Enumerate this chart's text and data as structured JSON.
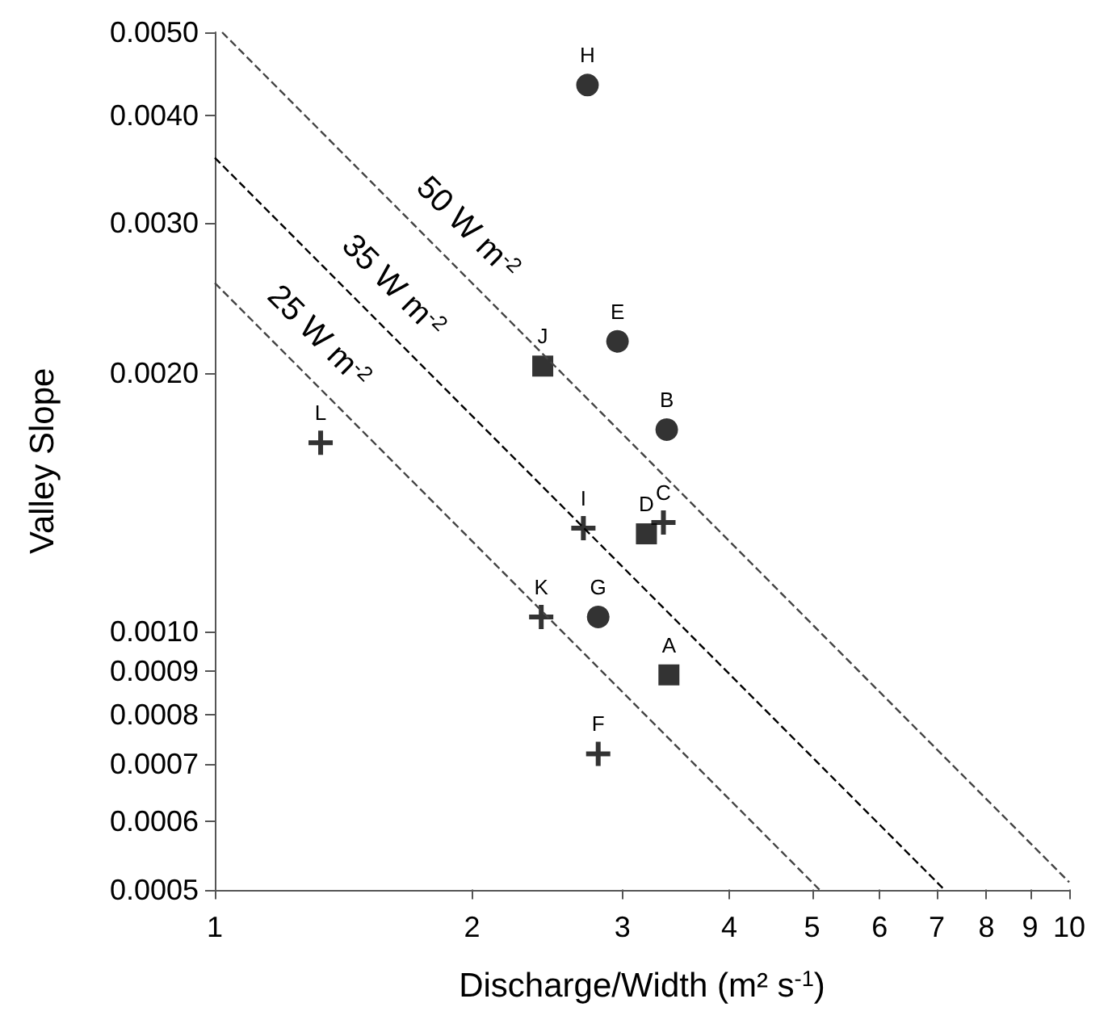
{
  "chart_data": {
    "type": "scatter",
    "xlabel": "Discharge/Width (m² s$^{-1}$)",
    "ylabel": "Valley Slope",
    "log": "xy",
    "grid": false,
    "legend": false,
    "xlim": [
      1,
      10
    ],
    "xticks": [
      1,
      2,
      3,
      4,
      5,
      6,
      7,
      8,
      9,
      10
    ],
    "ylim": [
      0.0005,
      0.005
    ],
    "yticks": [
      {
        "value": 0.0005,
        "label": "0.0005"
      },
      {
        "value": 0.0006,
        "label": "0.0006"
      },
      {
        "value": 0.0007,
        "label": "0.0007"
      },
      {
        "value": 0.0008,
        "label": "0.0008"
      },
      {
        "value": 0.0009,
        "label": "0.0009"
      },
      {
        "value": 0.001,
        "label": "0.0010"
      },
      {
        "value": 0.002,
        "label": "0.0020"
      },
      {
        "value": 0.003,
        "label": "0.0030"
      },
      {
        "value": 0.004,
        "label": "0.0040"
      },
      {
        "value": 0.005,
        "label": "0.0050"
      }
    ],
    "series": [
      {
        "marker": "circle",
        "color": "#000000",
        "x": [
          2.73,
          2.96,
          3.38,
          2.81
        ],
        "values": [
          0.00434,
          0.00218,
          0.00172,
          0.00104
        ]
      },
      {
        "marker": "square",
        "color": "#000000",
        "x": [
          2.42,
          3.2,
          3.4
        ],
        "values": [
          0.00204,
          0.0013,
          0.00089
        ]
      },
      {
        "marker": "cross",
        "color": "#000000",
        "x": [
          1.33,
          2.7,
          3.35,
          2.41,
          2.81
        ],
        "values": [
          0.00166,
          0.00132,
          0.00134,
          0.00104,
          0.00072
        ]
      },
      {
        "type": "line",
        "name": "50 W m$^{-2}$",
        "line_style": "dashed",
        "marker": "none",
        "color": "#444444",
        "x": [
          1.02,
          10
        ],
        "values": [
          0.005,
          0.00051
        ]
      },
      {
        "type": "line",
        "name": "35 W m$^{-2}$",
        "line_style": "dashed",
        "marker": "none",
        "color": "#000000",
        "x": [
          1,
          7.14
        ],
        "values": [
          0.00357,
          0.0005
        ]
      },
      {
        "type": "line",
        "name": "25 W m$^{-2}$",
        "line_style": "dashed",
        "marker": "none",
        "color": "#444444",
        "x": [
          1,
          5.1
        ],
        "values": [
          0.00255,
          0.0005
        ]
      }
    ],
    "annotations": [
      {
        "text": "H",
        "x": 2.73,
        "y": 0.00434
      },
      {
        "text": "E",
        "x": 2.96,
        "y": 0.00218
      },
      {
        "text": "B",
        "x": 3.38,
        "y": 0.00172
      },
      {
        "text": "G",
        "x": 2.81,
        "y": 0.00104
      },
      {
        "text": "J",
        "x": 2.42,
        "y": 0.00204
      },
      {
        "text": "D",
        "x": 3.2,
        "y": 0.0013
      },
      {
        "text": "A",
        "x": 3.4,
        "y": 0.00089
      },
      {
        "text": "L",
        "x": 1.33,
        "y": 0.00166
      },
      {
        "text": "I",
        "x": 2.7,
        "y": 0.00132
      },
      {
        "text": "C",
        "x": 3.35,
        "y": 0.00134
      },
      {
        "text": "K",
        "x": 2.41,
        "y": 0.00104
      },
      {
        "text": "F",
        "x": 2.81,
        "y": 0.00072
      }
    ]
  }
}
